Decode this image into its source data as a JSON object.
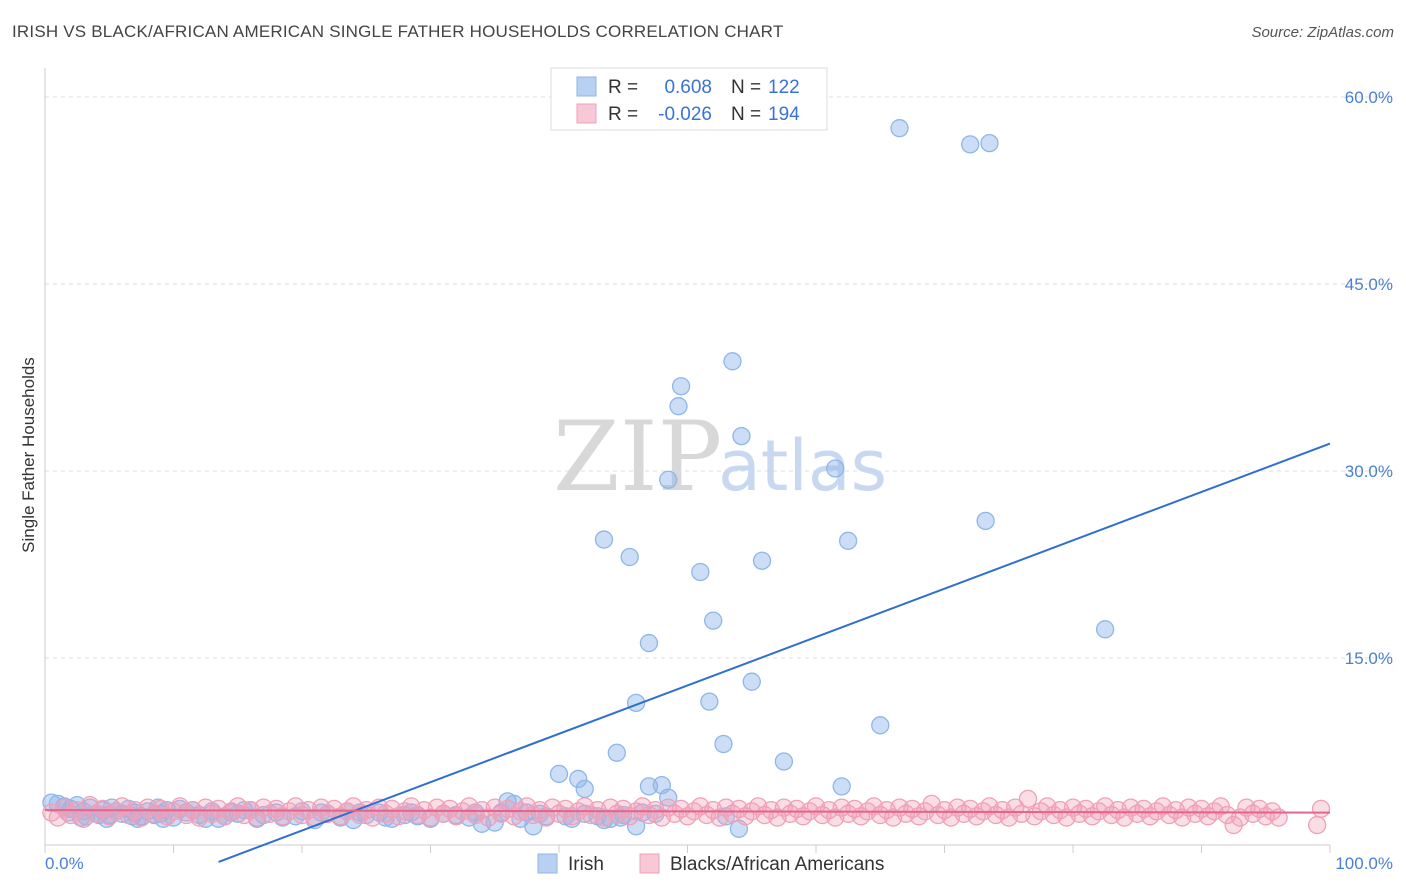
{
  "title": "IRISH VS BLACK/AFRICAN AMERICAN SINGLE FATHER HOUSEHOLDS CORRELATION CHART",
  "source": "Source: ZipAtlas.com",
  "watermark": {
    "zip": "ZIP",
    "atlas": "atlas"
  },
  "colors": {
    "irish": "#8fb6ea",
    "irish_line": "#2f6fcf",
    "black": "#f0a0b8",
    "black_line": "#e0668f",
    "grid": "#dddddd",
    "tick_text": "#4a7fd4"
  },
  "legend": {
    "rows": [
      {
        "r_label": "R =",
        "r_value": "0.608",
        "n_label": "N =",
        "n_value": "122"
      },
      {
        "r_label": "R =",
        "r_value": "-0.026",
        "n_label": "N =",
        "n_value": "194"
      }
    ]
  },
  "bottom_legend": {
    "irish": "Irish",
    "black": "Blacks/African Americans"
  },
  "chart_data": {
    "type": "scatter",
    "ylabel": "Single Father Households",
    "xlim": [
      0,
      100
    ],
    "ylim": [
      0,
      60
    ],
    "x_tick_labels": [
      "0.0%",
      "100.0%"
    ],
    "y_ticks": [
      15,
      30,
      45,
      60
    ],
    "y_tick_labels": [
      "15.0%",
      "30.0%",
      "45.0%",
      "60.0%"
    ],
    "grid": true,
    "series": [
      {
        "name": "Irish",
        "trend": {
          "x": [
            0,
            100
          ],
          "y": [
            -6.6,
            32.2
          ]
        },
        "points": [
          [
            66.5,
            57.5
          ],
          [
            72,
            56.2
          ],
          [
            73.5,
            56.3
          ],
          [
            53.5,
            38.8
          ],
          [
            49.5,
            36.8
          ],
          [
            49.3,
            35.2
          ],
          [
            54.2,
            32.8
          ],
          [
            61.5,
            30.2
          ],
          [
            48.5,
            29.3
          ],
          [
            73.2,
            26
          ],
          [
            43.5,
            24.5
          ],
          [
            62.5,
            24.4
          ],
          [
            45.5,
            23.1
          ],
          [
            55.8,
            22.8
          ],
          [
            51,
            21.9
          ],
          [
            52,
            18
          ],
          [
            82.5,
            17.3
          ],
          [
            47,
            16.2
          ],
          [
            55,
            13.1
          ],
          [
            46,
            11.4
          ],
          [
            51.7,
            11.5
          ],
          [
            65,
            9.6
          ],
          [
            52.8,
            8.1
          ],
          [
            44.5,
            7.4
          ],
          [
            57.5,
            6.7
          ],
          [
            40,
            5.7
          ],
          [
            41.5,
            5.3
          ],
          [
            42,
            4.5
          ],
          [
            47,
            4.7
          ],
          [
            48,
            4.8
          ],
          [
            62,
            4.7
          ],
          [
            48.5,
            3.8
          ],
          [
            36,
            3.5
          ],
          [
            37.5,
            2.6
          ],
          [
            40.5,
            2.3
          ],
          [
            43.5,
            2
          ],
          [
            46,
            1.5
          ],
          [
            47.5,
            2.5
          ],
          [
            53,
            2.3
          ],
          [
            54,
            1.3
          ],
          [
            34,
            1.7
          ],
          [
            35,
            1.8
          ],
          [
            38,
            1.5
          ],
          [
            33,
            2.2
          ],
          [
            31,
            2.5
          ],
          [
            29,
            2.3
          ],
          [
            27,
            2.1
          ],
          [
            25,
            2.4
          ],
          [
            23,
            2.2
          ],
          [
            21,
            2
          ],
          [
            19.5,
            2.3
          ],
          [
            18,
            2.6
          ],
          [
            16.5,
            2.1
          ],
          [
            15,
            2.5
          ],
          [
            14,
            2.3
          ],
          [
            13,
            2.7
          ],
          [
            12,
            2.4
          ],
          [
            11,
            2.6
          ],
          [
            10,
            2.2
          ],
          [
            9.5,
            2.8
          ],
          [
            9,
            2.5
          ],
          [
            8.5,
            2.4
          ],
          [
            8,
            2.7
          ],
          [
            7.5,
            2.3
          ],
          [
            7,
            2.6
          ],
          [
            6.5,
            2.9
          ],
          [
            6,
            2.5
          ],
          [
            5.5,
            2.7
          ],
          [
            5,
            2.4
          ],
          [
            4.5,
            2.8
          ],
          [
            4,
            2.5
          ],
          [
            3.5,
            3
          ],
          [
            3,
            2.7
          ],
          [
            2.5,
            3.2
          ],
          [
            2,
            2.9
          ],
          [
            1.5,
            3.1
          ],
          [
            1,
            3.3
          ],
          [
            0.5,
            3.4
          ],
          [
            2.8,
            2.2
          ],
          [
            4.8,
            2.1
          ],
          [
            6.8,
            2.3
          ],
          [
            9.2,
            2.1
          ],
          [
            11.5,
            2.8
          ],
          [
            13.5,
            2.1
          ],
          [
            15.5,
            2.8
          ],
          [
            17,
            2.4
          ],
          [
            20,
            2.7
          ],
          [
            22,
            2.5
          ],
          [
            24,
            2
          ],
          [
            26,
            2.6
          ],
          [
            28,
            2.4
          ],
          [
            30,
            2.1
          ],
          [
            32,
            2.4
          ],
          [
            37,
            2.1
          ],
          [
            39,
            2.3
          ],
          [
            42,
            2.5
          ],
          [
            44,
            2.1
          ],
          [
            45,
            2.4
          ],
          [
            24.5,
            2.6
          ],
          [
            26.5,
            2.2
          ],
          [
            1.8,
            2.6
          ],
          [
            3.2,
            2.3
          ],
          [
            5.2,
            3
          ],
          [
            7.2,
            2.1
          ],
          [
            8.8,
            3
          ],
          [
            10.5,
            2.9
          ],
          [
            12.5,
            2.1
          ],
          [
            14.5,
            2.6
          ],
          [
            16,
            2.8
          ],
          [
            18.5,
            2.2
          ],
          [
            21.5,
            2.6
          ],
          [
            23.5,
            2.7
          ],
          [
            28.5,
            2.6
          ],
          [
            33.5,
            2.6
          ],
          [
            35.5,
            2.6
          ],
          [
            38.5,
            2.5
          ],
          [
            41,
            2.1
          ],
          [
            43,
            2.3
          ],
          [
            44.8,
            2.2
          ],
          [
            46.5,
            2.6
          ],
          [
            36.5,
            3.3
          ],
          [
            4.2,
            2.4
          ]
        ]
      },
      {
        "name": "Blacks/African Americans",
        "trend": {
          "x": [
            0,
            100
          ],
          "y": [
            2.8,
            2.6
          ]
        },
        "points": [
          [
            0.5,
            2.6
          ],
          [
            1,
            2.2
          ],
          [
            1.5,
            3
          ],
          [
            2,
            2.4
          ],
          [
            2.5,
            2.8
          ],
          [
            3,
            2.1
          ],
          [
            3.5,
            3.2
          ],
          [
            4,
            2.5
          ],
          [
            4.5,
            2.9
          ],
          [
            5,
            2.3
          ],
          [
            5.5,
            2.7
          ],
          [
            6,
            3.1
          ],
          [
            6.5,
            2.4
          ],
          [
            7,
            2.8
          ],
          [
            7.5,
            2.2
          ],
          [
            8,
            3
          ],
          [
            8.5,
            2.5
          ],
          [
            9,
            2.9
          ],
          [
            9.5,
            2.3
          ],
          [
            10,
            2.7
          ],
          [
            10.5,
            3.1
          ],
          [
            11,
            2.4
          ],
          [
            11.5,
            2.8
          ],
          [
            12,
            2.2
          ],
          [
            12.5,
            3
          ],
          [
            13,
            2.5
          ],
          [
            13.5,
            2.9
          ],
          [
            14,
            2.3
          ],
          [
            14.5,
            2.7
          ],
          [
            15,
            3.1
          ],
          [
            15.5,
            2.4
          ],
          [
            16,
            2.8
          ],
          [
            16.5,
            2.2
          ],
          [
            17,
            3
          ],
          [
            17.5,
            2.5
          ],
          [
            18,
            2.9
          ],
          [
            18.5,
            2.3
          ],
          [
            19,
            2.7
          ],
          [
            19.5,
            3.1
          ],
          [
            20,
            2.4
          ],
          [
            20.5,
            2.8
          ],
          [
            21,
            2.2
          ],
          [
            21.5,
            3
          ],
          [
            22,
            2.5
          ],
          [
            22.5,
            2.9
          ],
          [
            23,
            2.3
          ],
          [
            23.5,
            2.7
          ],
          [
            24,
            3.1
          ],
          [
            24.5,
            2.4
          ],
          [
            25,
            2.8
          ],
          [
            25.5,
            2.2
          ],
          [
            26,
            3
          ],
          [
            26.5,
            2.5
          ],
          [
            27,
            2.9
          ],
          [
            27.5,
            2.3
          ],
          [
            28,
            2.7
          ],
          [
            28.5,
            3.1
          ],
          [
            29,
            2.4
          ],
          [
            29.5,
            2.8
          ],
          [
            30,
            2.2
          ],
          [
            30.5,
            3
          ],
          [
            31,
            2.5
          ],
          [
            31.5,
            2.9
          ],
          [
            32,
            2.3
          ],
          [
            32.5,
            2.7
          ],
          [
            33,
            3.1
          ],
          [
            33.5,
            2.4
          ],
          [
            34,
            2.8
          ],
          [
            34.5,
            2.2
          ],
          [
            35,
            3
          ],
          [
            35.5,
            2.5
          ],
          [
            36,
            2.9
          ],
          [
            36.5,
            2.3
          ],
          [
            37,
            2.7
          ],
          [
            37.5,
            3.1
          ],
          [
            38,
            2.4
          ],
          [
            38.5,
            2.8
          ],
          [
            39,
            2.2
          ],
          [
            39.5,
            3
          ],
          [
            40,
            2.5
          ],
          [
            40.5,
            2.9
          ],
          [
            41,
            2.3
          ],
          [
            41.5,
            2.7
          ],
          [
            42,
            3.1
          ],
          [
            42.5,
            2.4
          ],
          [
            43,
            2.8
          ],
          [
            43.5,
            2.2
          ],
          [
            44,
            3
          ],
          [
            44.5,
            2.5
          ],
          [
            45,
            2.9
          ],
          [
            45.5,
            2.3
          ],
          [
            46,
            2.7
          ],
          [
            46.5,
            3.1
          ],
          [
            47,
            2.4
          ],
          [
            47.5,
            2.8
          ],
          [
            48,
            2.2
          ],
          [
            48.5,
            3
          ],
          [
            49,
            2.5
          ],
          [
            49.5,
            2.9
          ],
          [
            50,
            2.3
          ],
          [
            50.5,
            2.7
          ],
          [
            51,
            3.1
          ],
          [
            51.5,
            2.4
          ],
          [
            52,
            2.8
          ],
          [
            52.5,
            2.2
          ],
          [
            53,
            3
          ],
          [
            53.5,
            2.5
          ],
          [
            54,
            2.9
          ],
          [
            54.5,
            2.3
          ],
          [
            55,
            2.7
          ],
          [
            55.5,
            3.1
          ],
          [
            56,
            2.4
          ],
          [
            56.5,
            2.8
          ],
          [
            57,
            2.2
          ],
          [
            57.5,
            3
          ],
          [
            58,
            2.5
          ],
          [
            58.5,
            2.9
          ],
          [
            59,
            2.3
          ],
          [
            59.5,
            2.7
          ],
          [
            60,
            3.1
          ],
          [
            60.5,
            2.4
          ],
          [
            61,
            2.8
          ],
          [
            61.5,
            2.2
          ],
          [
            62,
            3
          ],
          [
            62.5,
            2.5
          ],
          [
            63,
            2.9
          ],
          [
            63.5,
            2.3
          ],
          [
            64,
            2.7
          ],
          [
            64.5,
            3.1
          ],
          [
            65,
            2.4
          ],
          [
            65.5,
            2.8
          ],
          [
            66,
            2.2
          ],
          [
            66.5,
            3
          ],
          [
            67,
            2.5
          ],
          [
            67.5,
            2.9
          ],
          [
            68,
            2.3
          ],
          [
            68.5,
            2.7
          ],
          [
            69,
            3.3
          ],
          [
            69.5,
            2.4
          ],
          [
            70,
            2.8
          ],
          [
            70.5,
            2.2
          ],
          [
            71,
            3
          ],
          [
            71.5,
            2.5
          ],
          [
            72,
            2.9
          ],
          [
            72.5,
            2.3
          ],
          [
            73,
            2.7
          ],
          [
            73.5,
            3.1
          ],
          [
            74,
            2.4
          ],
          [
            74.5,
            2.8
          ],
          [
            75,
            2.2
          ],
          [
            75.5,
            3
          ],
          [
            76,
            2.5
          ],
          [
            76.5,
            3.7
          ],
          [
            77,
            2.3
          ],
          [
            77.5,
            2.7
          ],
          [
            78,
            3.1
          ],
          [
            78.5,
            2.4
          ],
          [
            79,
            2.8
          ],
          [
            79.5,
            2.2
          ],
          [
            80,
            3
          ],
          [
            80.5,
            2.5
          ],
          [
            81,
            2.9
          ],
          [
            81.5,
            2.3
          ],
          [
            82,
            2.7
          ],
          [
            82.5,
            3.1
          ],
          [
            83,
            2.4
          ],
          [
            83.5,
            2.8
          ],
          [
            84,
            2.2
          ],
          [
            84.5,
            3
          ],
          [
            85,
            2.5
          ],
          [
            85.5,
            2.9
          ],
          [
            86,
            2.3
          ],
          [
            86.5,
            2.7
          ],
          [
            87,
            3.1
          ],
          [
            87.5,
            2.4
          ],
          [
            88,
            2.8
          ],
          [
            88.5,
            2.2
          ],
          [
            89,
            3
          ],
          [
            89.5,
            2.5
          ],
          [
            90,
            2.9
          ],
          [
            90.5,
            2.3
          ],
          [
            91,
            2.7
          ],
          [
            91.5,
            3.1
          ],
          [
            92,
            2.4
          ],
          [
            92.5,
            1.6
          ],
          [
            93,
            2.2
          ],
          [
            93.5,
            3
          ],
          [
            94,
            2.5
          ],
          [
            94.5,
            2.9
          ],
          [
            95,
            2.3
          ],
          [
            95.5,
            2.7
          ],
          [
            96,
            2.2
          ],
          [
            99,
            1.6
          ],
          [
            99.3,
            2.9
          ]
        ]
      }
    ]
  }
}
